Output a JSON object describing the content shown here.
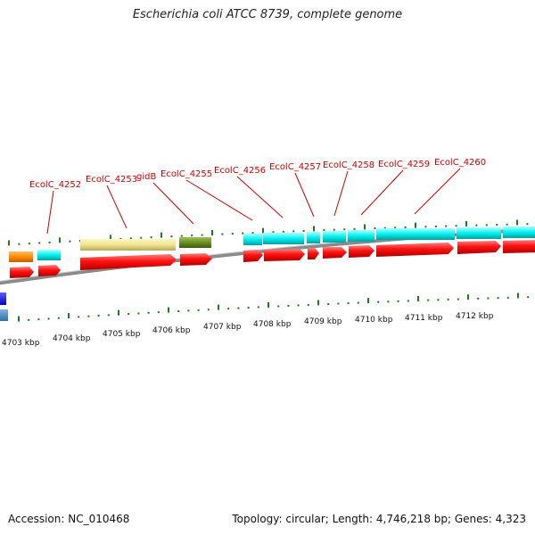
{
  "title": "Escherichia coli ATCC 8739, complete genome",
  "accession": "Accession: NC_010468",
  "summary": "Topology: circular; Length: 4,746,218 bp; Genes: 4,323",
  "colors": {
    "cds": "#ff0000",
    "cog_cyan": "#00ffff",
    "cog_khaki": "#f0e68c",
    "cog_olive": "#6b8e23",
    "cog_orange": "#ff8c00",
    "label": "#cc0000",
    "tick": "#006400",
    "backbone": "#808080"
  },
  "scale_labels": [
    "4703 kbp",
    "4704 kbp",
    "4705 kbp",
    "4706 kbp",
    "4707 kbp",
    "4708 kbp",
    "4709 kbp",
    "4710 kbp",
    "4711 kbp",
    "4712 kbp"
  ],
  "gene_labels": [
    "EcolC_4252",
    "EcolC_4253",
    "gidB",
    "EcolC_4255",
    "EcolC_4256",
    "EcolC_4257",
    "EcolC_4258",
    "EcolC_4259",
    "EcolC_4260"
  ]
}
